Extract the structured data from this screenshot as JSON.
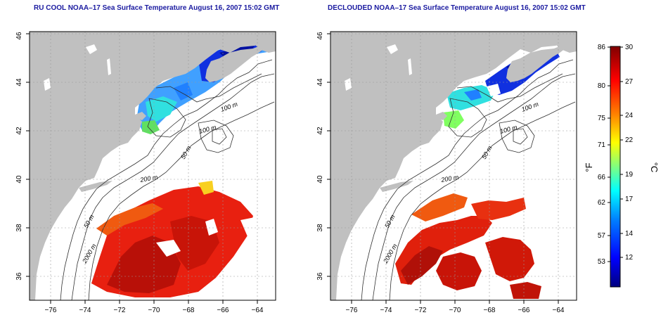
{
  "panels": [
    {
      "id": "left",
      "title": "RU COOL NOAA–17 Sea Surface Temperature August 16, 2007 15:02 GMT",
      "contour_labels": [
        "100 m",
        "100 m",
        "50 m",
        "200 m",
        "50 m",
        "2000 m"
      ]
    },
    {
      "id": "right",
      "title": "DECLOUDED NOAA–17 Sea Surface Temperature August 16, 2007 15:02 GMT",
      "contour_labels": [
        "100 m",
        "100 m",
        "50 m",
        "200 m",
        "50 m",
        "2000 m"
      ]
    }
  ],
  "axes": {
    "x_ticks": [
      "−76",
      "−74",
      "−72",
      "−70",
      "−68",
      "−66",
      "−64"
    ],
    "y_ticks": [
      "36",
      "38",
      "40",
      "42",
      "44",
      "46"
    ]
  },
  "colorbar": {
    "f_label": "°F",
    "c_label": "°C",
    "f_ticks": [
      "86",
      "80",
      "75",
      "71",
      "66",
      "62",
      "57",
      "53"
    ],
    "c_ticks": [
      "30",
      "27",
      "24",
      "22",
      "19",
      "17",
      "14",
      "12"
    ],
    "colors": [
      "#00007f",
      "#0000ff",
      "#0080ff",
      "#00ffff",
      "#80ff80",
      "#ffff00",
      "#ff8000",
      "#ff0000",
      "#7f0000"
    ]
  },
  "colors": {
    "land": "#c0c0c0",
    "title": "#1a1aa0"
  }
}
